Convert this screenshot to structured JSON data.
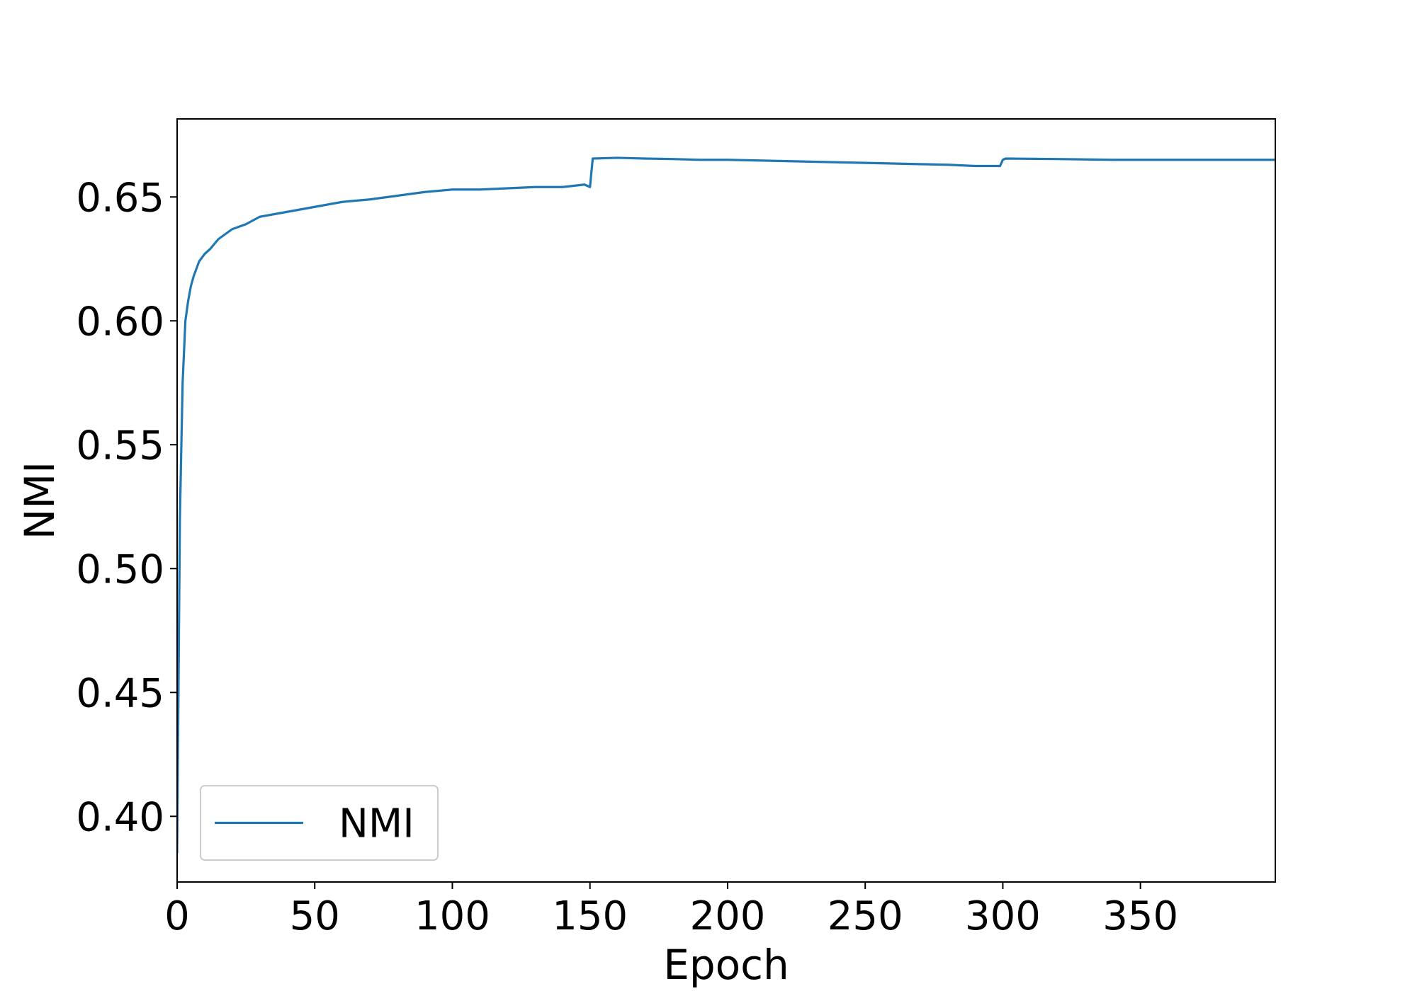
{
  "chart_data": {
    "type": "line",
    "title": "",
    "xlabel": "Epoch",
    "ylabel": "NMI",
    "xlim": [
      0,
      399
    ],
    "ylim": [
      0.3735,
      0.6815
    ],
    "xticks": [
      0,
      50,
      100,
      150,
      200,
      250,
      300,
      350
    ],
    "xtick_labels": [
      "0",
      "50",
      "100",
      "150",
      "200",
      "250",
      "300",
      "350"
    ],
    "yticks": [
      0.4,
      0.45,
      0.5,
      0.55,
      0.6,
      0.65
    ],
    "ytick_labels": [
      "0.40",
      "0.45",
      "0.50",
      "0.55",
      "0.60",
      "0.65"
    ],
    "grid": false,
    "legend_position": "lower-left",
    "color": "#1f77b4",
    "series": [
      {
        "name": "NMI",
        "x": [
          0,
          1,
          2,
          3,
          4,
          5,
          6,
          7,
          8,
          10,
          12,
          15,
          20,
          25,
          30,
          35,
          40,
          45,
          50,
          60,
          70,
          80,
          90,
          100,
          110,
          120,
          130,
          140,
          148,
          150,
          151,
          160,
          170,
          180,
          190,
          200,
          220,
          240,
          260,
          280,
          290,
          299,
          300,
          301,
          320,
          340,
          360,
          380,
          399
        ],
        "y": [
          0.385,
          0.52,
          0.575,
          0.6,
          0.608,
          0.614,
          0.618,
          0.621,
          0.624,
          0.627,
          0.629,
          0.633,
          0.637,
          0.639,
          0.642,
          0.643,
          0.644,
          0.645,
          0.646,
          0.648,
          0.649,
          0.6505,
          0.652,
          0.653,
          0.653,
          0.6535,
          0.654,
          0.654,
          0.655,
          0.654,
          0.6655,
          0.6658,
          0.6655,
          0.6653,
          0.665,
          0.665,
          0.6645,
          0.664,
          0.6635,
          0.663,
          0.6625,
          0.6625,
          0.665,
          0.6655,
          0.6653,
          0.665,
          0.665,
          0.665,
          0.665
        ]
      }
    ]
  }
}
